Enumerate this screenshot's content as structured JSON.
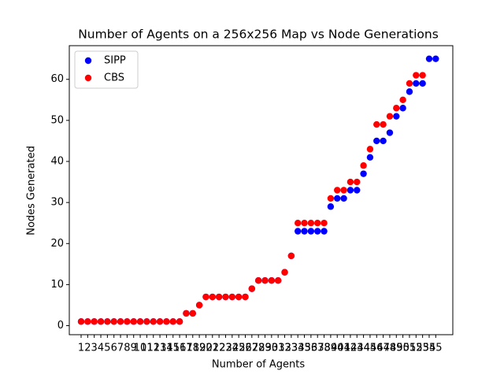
{
  "chart_data": {
    "type": "scatter",
    "title": "Number of Agents on a 256x256 Map vs Node Generations",
    "x_label": "Number of Agents",
    "y_label": "Nodes Generated",
    "x": [
      1,
      2,
      3,
      4,
      5,
      6,
      7,
      8,
      9,
      10,
      11,
      12,
      13,
      14,
      15,
      16,
      17,
      18,
      19,
      20,
      21,
      22,
      23,
      24,
      25,
      26,
      27,
      28,
      29,
      30,
      31,
      32,
      33,
      34,
      35,
      36,
      37,
      38,
      39,
      40,
      41,
      42,
      43,
      44,
      45,
      46,
      47,
      48,
      49,
      50,
      51,
      52,
      53,
      54,
      55
    ],
    "series": [
      {
        "name": "SIPP",
        "color": "#0000ff",
        "values": [
          1,
          1,
          1,
          1,
          1,
          1,
          1,
          1,
          1,
          1,
          1,
          1,
          1,
          1,
          1,
          1,
          3,
          3,
          5,
          7,
          7,
          7,
          7,
          7,
          7,
          7,
          9,
          11,
          11,
          11,
          11,
          13,
          17,
          23,
          23,
          23,
          23,
          23,
          29,
          31,
          31,
          33,
          33,
          37,
          41,
          45,
          45,
          47,
          51,
          53,
          57,
          59,
          59,
          65,
          65
        ]
      },
      {
        "name": "CBS",
        "color": "#ff0000",
        "values": [
          1,
          1,
          1,
          1,
          1,
          1,
          1,
          1,
          1,
          1,
          1,
          1,
          1,
          1,
          1,
          1,
          3,
          3,
          5,
          7,
          7,
          7,
          7,
          7,
          7,
          7,
          9,
          11,
          11,
          11,
          11,
          13,
          17,
          25,
          25,
          25,
          25,
          25,
          31,
          33,
          33,
          35,
          35,
          39,
          43,
          49,
          49,
          51,
          53,
          55,
          59,
          61,
          61,
          null,
          null
        ]
      }
    ],
    "xlim": [
      -0.8,
      57.6
    ],
    "ylim": [
      -2.2,
      68.2
    ],
    "xticks": [
      1,
      2,
      3,
      4,
      5,
      6,
      7,
      8,
      9,
      10,
      11,
      12,
      13,
      14,
      15,
      16,
      17,
      18,
      19,
      20,
      21,
      22,
      23,
      24,
      25,
      26,
      27,
      28,
      29,
      30,
      31,
      32,
      33,
      34,
      35,
      36,
      37,
      38,
      39,
      40,
      41,
      42,
      43,
      44,
      45,
      46,
      47,
      48,
      49,
      50,
      51,
      52,
      53,
      54,
      55
    ],
    "yticks": [
      0,
      10,
      20,
      30,
      40,
      50,
      60
    ],
    "grid": false,
    "legend": "upper-left"
  }
}
